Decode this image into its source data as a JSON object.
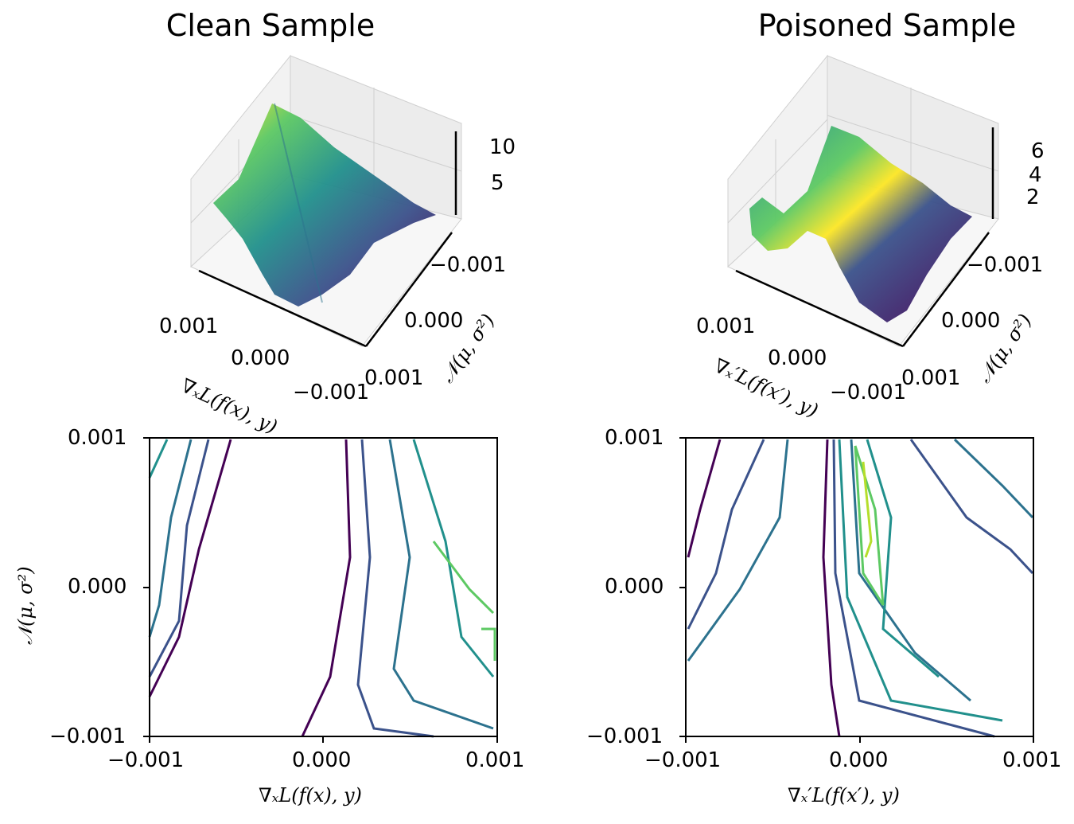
{
  "chart_data": [
    {
      "type": "surface3d",
      "title": "Clean Sample",
      "xlabel": "∇ₓL(f(x), y)",
      "ylabel": "𝒩(μ, σ²)",
      "x_ticks": [
        "0.001",
        "0.000",
        "−0.001"
      ],
      "y_ticks": [
        "−0.001",
        "0.000",
        "0.001"
      ],
      "z_ticks": [
        "10",
        "5"
      ],
      "xlim": [
        -0.001,
        0.001
      ],
      "ylim": [
        -0.001,
        0.001
      ],
      "zlim": [
        0,
        12
      ],
      "colormap": "viridis"
    },
    {
      "type": "surface3d",
      "title": "Poisoned Sample",
      "xlabel": "∇ₓ′L(f(x′), y)",
      "ylabel": "𝒩(μ, σ²)",
      "x_ticks": [
        "0.001",
        "0.000",
        "−0.001"
      ],
      "y_ticks": [
        "−0.001",
        "0.000",
        "0.001"
      ],
      "z_ticks": [
        "6",
        "4",
        "2"
      ],
      "xlim": [
        -0.001,
        0.001
      ],
      "ylim": [
        -0.001,
        0.001
      ],
      "zlim": [
        0,
        7
      ],
      "colormap": "viridis"
    },
    {
      "type": "contour",
      "xlabel": "∇ₓL(f(x), y)",
      "ylabel": "𝒩(μ, σ²)",
      "x_ticks": [
        "−0.001",
        "0.000",
        "0.001"
      ],
      "y_ticks": [
        "0.001",
        "0.000",
        "−0.001"
      ],
      "xlim": [
        -0.001,
        0.001
      ],
      "ylim": [
        -0.001,
        0.001
      ],
      "colormap": "viridis"
    },
    {
      "type": "contour",
      "xlabel": "∇ₓ′L(f(x′), y)",
      "x_ticks": [
        "−0.001",
        "0.000",
        "0.001"
      ],
      "y_ticks": [
        "0.001",
        "0.000",
        "−0.001"
      ],
      "xlim": [
        -0.001,
        0.001
      ],
      "ylim": [
        -0.001,
        0.001
      ],
      "colormap": "viridis"
    }
  ],
  "colors": {
    "viridis": [
      "#440154",
      "#3b528b",
      "#21908c",
      "#5dc963",
      "#fde725"
    ],
    "pane": "#f2f2f2",
    "grid": "#c8c8c8"
  }
}
